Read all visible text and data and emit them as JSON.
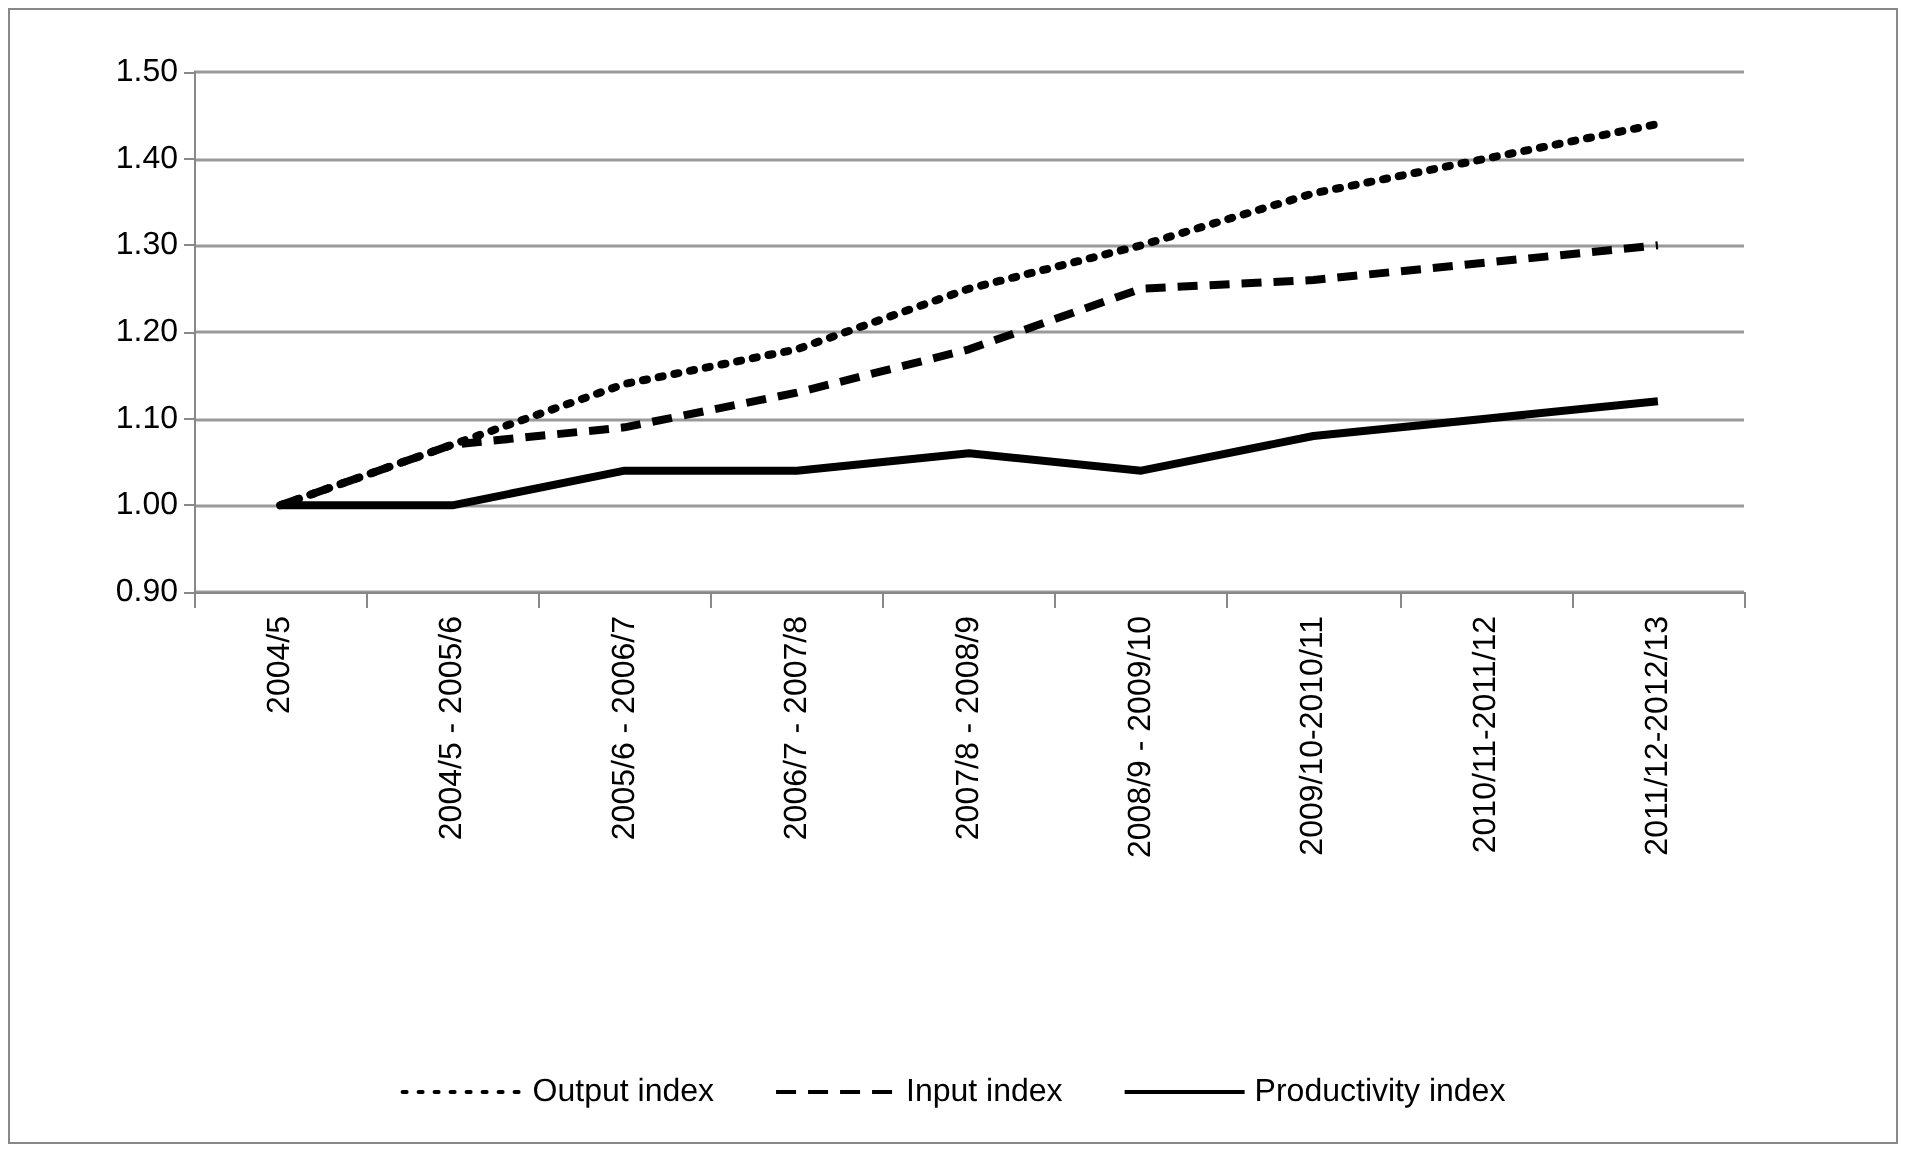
{
  "chart_data": {
    "type": "line",
    "categories": [
      "2004/5",
      "2004/5 - 2005/6",
      "2005/6 - 2006/7",
      "2006/7 - 2007/8",
      "2007/8 - 2008/9",
      "2008/9 - 2009/10",
      "2009/10-2010/11",
      "2010/11-2011/12",
      "2011/12-2012/13"
    ],
    "series": [
      {
        "name": "Output index",
        "color": "#000000",
        "line_style": "dotted",
        "values": [
          1.0,
          1.07,
          1.14,
          1.18,
          1.25,
          1.3,
          1.36,
          1.4,
          1.44
        ]
      },
      {
        "name": "Input index",
        "color": "#000000",
        "line_style": "dashed",
        "values": [
          1.0,
          1.07,
          1.09,
          1.13,
          1.18,
          1.25,
          1.26,
          1.28,
          1.3
        ]
      },
      {
        "name": "Productivity index",
        "color": "#000000",
        "line_style": "solid",
        "values": [
          1.0,
          1.0,
          1.04,
          1.04,
          1.06,
          1.04,
          1.08,
          1.1,
          1.12
        ]
      }
    ],
    "ylim": [
      0.9,
      1.5
    ],
    "yticks": [
      {
        "value": 0.9,
        "label": "0.90"
      },
      {
        "value": 1.0,
        "label": "1.00"
      },
      {
        "value": 1.1,
        "label": "1.10"
      },
      {
        "value": 1.2,
        "label": "1.20"
      },
      {
        "value": 1.3,
        "label": "1.30"
      },
      {
        "value": 1.4,
        "label": "1.40"
      },
      {
        "value": 1.5,
        "label": "1.50"
      }
    ],
    "grid": "y",
    "legend": "bottom",
    "marker": "none"
  }
}
